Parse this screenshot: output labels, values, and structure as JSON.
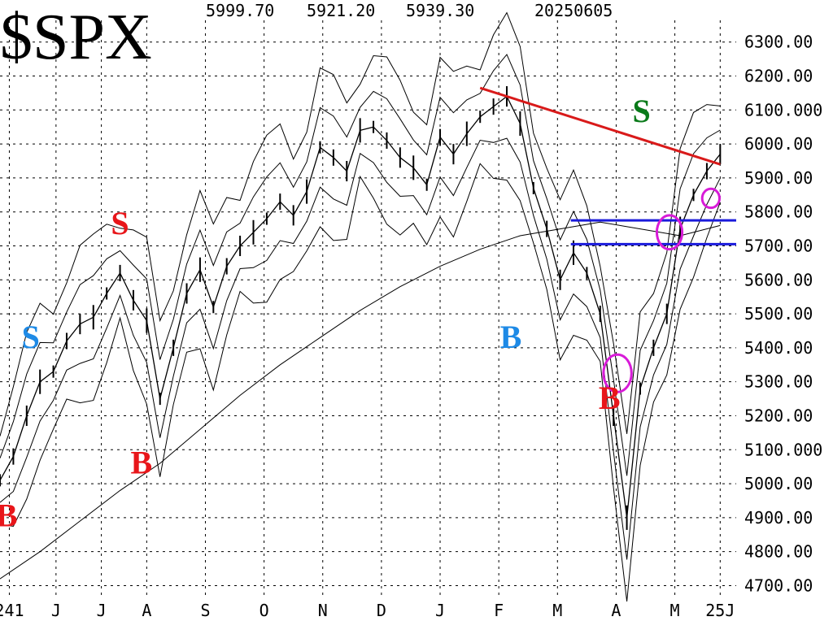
{
  "chart_data": {
    "type": "line",
    "title": "$SPX",
    "header_values": [
      "5999.70",
      "5921.20",
      "5939.30",
      "20250605"
    ],
    "y_ticks": [
      "6300.00",
      "6200.00",
      "6100.000",
      "6000.00",
      "5900.00",
      "5800.00",
      "5700.00",
      "5600.00",
      "5500.00",
      "5400.00",
      "5300.00",
      "5200.00",
      "5100.000",
      "5000.00",
      "4900.00",
      "4800.00",
      "4700.00"
    ],
    "y_tick_values": [
      6300,
      6200,
      6100,
      6000,
      5900,
      5800,
      5700,
      5600,
      5500,
      5400,
      5300,
      5200,
      5100,
      5000,
      4900,
      4800,
      4700
    ],
    "x_ticks": [
      "241",
      "J",
      "J",
      "A",
      "S",
      "O",
      "N",
      "D",
      "J",
      "F",
      "M",
      "A",
      "M",
      "25J"
    ],
    "x_tick_index": [
      0.7,
      4.2,
      7.6,
      11.0,
      15.4,
      19.8,
      24.2,
      28.6,
      33.0,
      37.4,
      41.8,
      46.2,
      50.6,
      54.0
    ],
    "ylim": [
      4670,
      6340
    ],
    "xlim": [
      0,
      55.2
    ],
    "grid": true,
    "series": [
      {
        "x": [
          0,
          1,
          2,
          3,
          4,
          5,
          6,
          7,
          8,
          9,
          10,
          11,
          12,
          13,
          14,
          15,
          16,
          17,
          18,
          19,
          20,
          21,
          22,
          23,
          24,
          25,
          26,
          27,
          28,
          29,
          30,
          31,
          32,
          33,
          34,
          35,
          36,
          37,
          38,
          39,
          40,
          41,
          42,
          43,
          44,
          45,
          46,
          47,
          48,
          49,
          50,
          51,
          52,
          53,
          54
        ],
        "values": [
          5010,
          5080,
          5200,
          5300,
          5330,
          5420,
          5470,
          5490,
          5560,
          5620,
          5540,
          5480,
          5250,
          5400,
          5560,
          5630,
          5520,
          5640,
          5700,
          5740,
          5780,
          5830,
          5790,
          5860,
          5990,
          5960,
          5920,
          6040,
          6050,
          6010,
          5960,
          5930,
          5880,
          6020,
          5970,
          6030,
          6080,
          6110,
          6140,
          6060,
          5870,
          5750,
          5600,
          5680,
          5620,
          5500,
          5200,
          4900,
          5280,
          5400,
          5500,
          5750,
          5850,
          5920,
          5970
        ]
      },
      {
        "x": [
          0,
          3,
          6,
          9,
          12,
          15,
          18,
          21,
          24,
          27,
          30,
          33,
          36,
          39,
          42,
          45,
          48,
          51,
          54
        ],
        "values": [
          4720,
          4800,
          4890,
          4980,
          5060,
          5160,
          5260,
          5350,
          5430,
          5510,
          5580,
          5640,
          5690,
          5730,
          5750,
          5770,
          5750,
          5730,
          5760
        ]
      }
    ],
    "signals": [
      {
        "label": "B",
        "x": 0.5,
        "y": 4875,
        "color": "#e8161a"
      },
      {
        "label": "S",
        "x": 2.3,
        "y": 5400,
        "color": "#1e8ae6"
      },
      {
        "label": "S",
        "x": 9.0,
        "y": 5735,
        "color": "#e8161a"
      },
      {
        "label": "B",
        "x": 10.6,
        "y": 5030,
        "color": "#e8161a"
      },
      {
        "label": "B",
        "x": 38.3,
        "y": 5400,
        "color": "#1e8ae6"
      },
      {
        "label": "B",
        "x": 45.7,
        "y": 5220,
        "color": "#e8161a"
      },
      {
        "label": "S",
        "x": 48.1,
        "y": 6065,
        "color": "#0a7a1a"
      }
    ],
    "annotations": {
      "trendline": {
        "x": [
          36.0,
          54.0
        ],
        "y": [
          6165,
          5940
        ],
        "color": "#d91a1a"
      },
      "hlines": [
        {
          "y": 5775,
          "x": [
            42.8,
            55.2
          ],
          "color": "#1a1adb"
        },
        {
          "y": 5705,
          "x": [
            42.8,
            55.2
          ],
          "color": "#1a1adb"
        }
      ],
      "circles": [
        {
          "x": 46.3,
          "y": 5325,
          "rx": 1.05,
          "ry": 55,
          "color": "#d81bd8"
        },
        {
          "x": 50.2,
          "y": 5740,
          "rx": 0.95,
          "ry": 50,
          "color": "#d81bd8"
        },
        {
          "x": 53.3,
          "y": 5840,
          "rx": 0.65,
          "ry": 28,
          "color": "#d81bd8"
        }
      ]
    }
  }
}
